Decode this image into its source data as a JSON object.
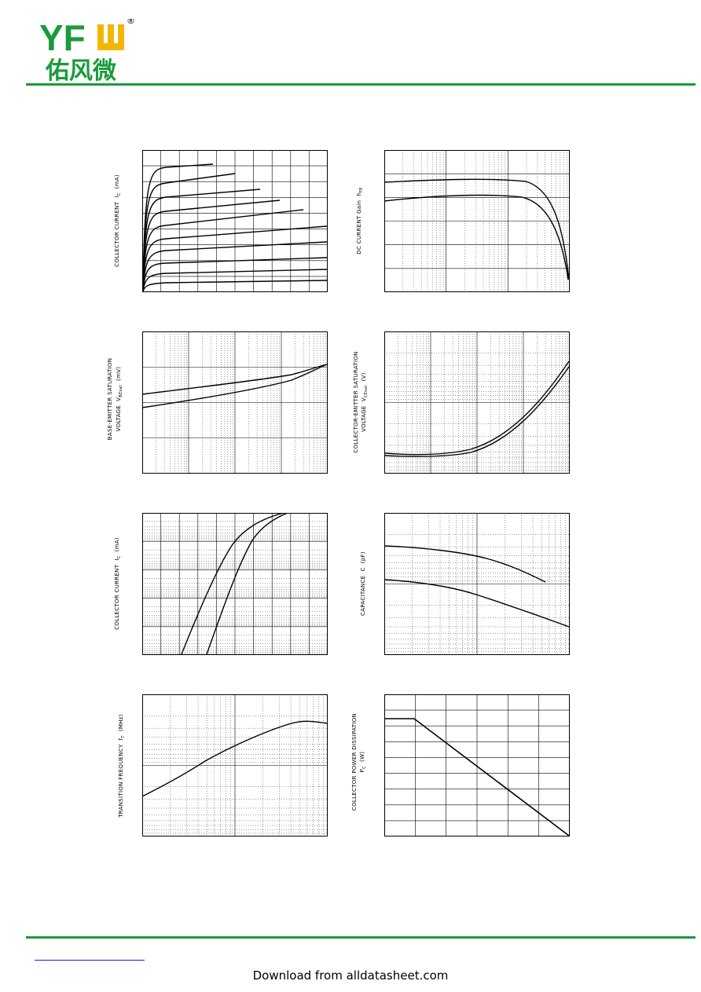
{
  "header": {
    "brand_latin": "YFW",
    "brand_cjk": "佑风微",
    "registered_mark": "®",
    "colors": {
      "green": "#1a9b3c",
      "yellow": "#f2b705"
    }
  },
  "charts": {
    "ic_vce": {
      "ylabel_main": "COLLECTOR CURRENT",
      "ylabel_sym": "I",
      "ylabel_sub": "C",
      "ylabel_unit": "(mA)"
    },
    "hfe_ic": {
      "ylabel_main": "DC CURRENT Gain",
      "ylabel_sym": "h",
      "ylabel_sub": "FE",
      "ylabel_unit": ""
    },
    "vbesat_ic": {
      "ylabel_line1": "BASE-EMITTER SATURATION",
      "ylabel_main": "VOLTAGE",
      "ylabel_sym": "V",
      "ylabel_sub": "BEsat",
      "ylabel_unit": "(mV)"
    },
    "vcesat_ic": {
      "ylabel_line1": "COLLECTOR-EMITTER SATURATION",
      "ylabel_main": "VOLTAGE",
      "ylabel_sym": "V",
      "ylabel_sub": "CEsat",
      "ylabel_unit": "(V)"
    },
    "ic_vbe": {
      "ylabel_main": "COLLECTOR CURRENT",
      "ylabel_sym": "I",
      "ylabel_sub": "C",
      "ylabel_unit": "(mA)"
    },
    "cap_v": {
      "ylabel_main": "CAPACITANCE",
      "ylabel_sym": "C",
      "ylabel_sub": "",
      "ylabel_unit": "(pF)"
    },
    "ft_ic": {
      "ylabel_main": "TRANSITION FREQUENCY",
      "ylabel_sym": "f",
      "ylabel_sub": "T",
      "ylabel_unit": "(MHz)"
    },
    "pc_ta": {
      "ylabel_line1": "COLLECTOR POWER DISSIPATION",
      "ylabel_main": "",
      "ylabel_sym": "P",
      "ylabel_sub": "C",
      "ylabel_unit": "(W)"
    }
  },
  "footer": {
    "download_text": "Download from alldatasheet.com"
  }
}
